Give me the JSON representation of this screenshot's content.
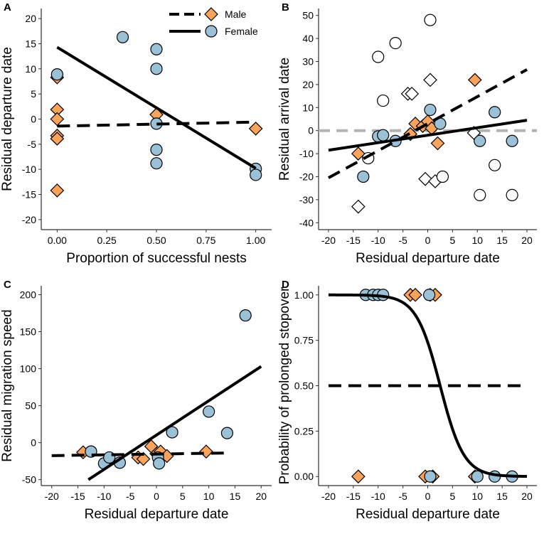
{
  "colors": {
    "male": "#F9A35B",
    "female": "#9BC1D7",
    "open": "#ffffff",
    "zero_line": "#b3b3b3",
    "line": "#000000"
  },
  "legend": {
    "male_label": "Male",
    "female_label": "Female"
  },
  "chart_data": [
    {
      "panel": "A",
      "type": "scatter",
      "xlabel": "Proportion of successful nests",
      "ylabel": "Residual departure date",
      "xlim": [
        -0.08,
        1.08
      ],
      "ylim": [
        -22,
        22
      ],
      "xticks": [
        0,
        0.25,
        0.5,
        0.75,
        1
      ],
      "xtick_labels": [
        "0.00",
        "0.25",
        "0.50",
        "0.75",
        "1.00"
      ],
      "yticks": [
        -20,
        -15,
        -10,
        -5,
        0,
        5,
        10,
        15,
        20
      ],
      "ytick_labels": [
        "-20",
        "-15",
        "-10",
        "-5",
        "0",
        "5",
        "10",
        "15",
        "20"
      ],
      "series": [
        {
          "name": "Male",
          "marker": "diamond",
          "fill": "male",
          "points": [
            [
              0,
              8.3
            ],
            [
              0,
              1.9
            ],
            [
              0,
              0
            ],
            [
              0,
              -3.3
            ],
            [
              0,
              -3.9
            ],
            [
              0,
              -14.2
            ],
            [
              0.5,
              0.9
            ],
            [
              1,
              -1.9
            ]
          ]
        },
        {
          "name": "Female",
          "marker": "circle",
          "fill": "female",
          "points": [
            [
              0,
              8.9
            ],
            [
              0.33,
              16.3
            ],
            [
              0.5,
              13.9
            ],
            [
              0.5,
              10.0
            ],
            [
              0.5,
              -0.9
            ],
            [
              0.5,
              -6.1
            ],
            [
              0.5,
              -8.8
            ],
            [
              1,
              -9.9
            ],
            [
              1,
              -11.1
            ]
          ]
        }
      ],
      "lines": [
        {
          "name": "Male",
          "style": "dashed",
          "x": [
            0,
            1
          ],
          "y": [
            -1.4,
            -0.6
          ]
        },
        {
          "name": "Female",
          "style": "solid",
          "x": [
            0,
            1
          ],
          "y": [
            14.3,
            -9.8
          ]
        }
      ],
      "legend_position": "top-right"
    },
    {
      "panel": "B",
      "type": "scatter",
      "xlabel": "Residual departure date",
      "ylabel": "Residual arrival date",
      "xlim": [
        -22,
        22
      ],
      "ylim": [
        -43,
        53
      ],
      "xticks": [
        -20,
        -15,
        -10,
        -5,
        0,
        5,
        10,
        15,
        20
      ],
      "xtick_labels": [
        "-20",
        "-15",
        "-10",
        "-5",
        "0",
        "5",
        "10",
        "15",
        "20"
      ],
      "yticks": [
        -40,
        -30,
        -20,
        -10,
        0,
        10,
        20,
        30,
        40,
        50
      ],
      "ytick_labels": [
        "-40",
        "-30",
        "-20",
        "-10",
        "0",
        "10",
        "20",
        "30",
        "40",
        "50"
      ],
      "hline": {
        "y": 0,
        "style": "dashed",
        "color": "zero_line"
      },
      "series": [
        {
          "name": "Male",
          "marker": "diamond",
          "fill": "male",
          "points": [
            [
              -14,
              -10
            ],
            [
              -3.5,
              -1.5
            ],
            [
              -2.5,
              3
            ],
            [
              -1,
              2
            ],
            [
              0,
              4
            ],
            [
              0.8,
              1
            ],
            [
              2,
              -5.5
            ],
            [
              9.5,
              22
            ]
          ]
        },
        {
          "name": "Female",
          "marker": "circle",
          "fill": "female",
          "points": [
            [
              -13,
              -20
            ],
            [
              -10,
              -2.5
            ],
            [
              -9,
              -2
            ],
            [
              -6.5,
              -4.5
            ],
            [
              0.5,
              9
            ],
            [
              2.5,
              3
            ],
            [
              10.5,
              -4.5
            ],
            [
              13.5,
              8
            ],
            [
              17,
              -4.5
            ]
          ]
        },
        {
          "name": "Male (open)",
          "marker": "diamond",
          "fill": "open",
          "points": [
            [
              -14,
              -33
            ],
            [
              -4,
              16
            ],
            [
              -3.2,
              16
            ],
            [
              -0.5,
              -21
            ],
            [
              0.5,
              22
            ],
            [
              1.5,
              -22
            ],
            [
              9.3,
              -1
            ]
          ]
        },
        {
          "name": "Female (open)",
          "marker": "circle",
          "fill": "open",
          "points": [
            [
              -12,
              -12
            ],
            [
              -10,
              32
            ],
            [
              -9,
              13
            ],
            [
              -6.5,
              38
            ],
            [
              0.5,
              48
            ],
            [
              3,
              -20
            ],
            [
              10.5,
              -28
            ],
            [
              13.5,
              -15
            ],
            [
              17,
              -28
            ]
          ]
        }
      ],
      "lines": [
        {
          "name": "Male",
          "style": "dashed",
          "x": [
            -20,
            20
          ],
          "y": [
            -20.5,
            26.5
          ]
        },
        {
          "name": "Female",
          "style": "solid",
          "x": [
            -20,
            20
          ],
          "y": [
            -8.5,
            4.5
          ]
        }
      ]
    },
    {
      "panel": "C",
      "type": "scatter",
      "xlabel": "Residual departure date",
      "ylabel": "Residual migration speed",
      "xlim": [
        -22,
        22
      ],
      "ylim": [
        -58,
        212
      ],
      "xticks": [
        -20,
        -15,
        -10,
        -5,
        0,
        5,
        10,
        15,
        20
      ],
      "xtick_labels": [
        "-20",
        "-15",
        "-10",
        "-5",
        "0",
        "5",
        "10",
        "15",
        "20"
      ],
      "yticks": [
        -50,
        0,
        50,
        100,
        150,
        200
      ],
      "ytick_labels": [
        "-50",
        "0",
        "50",
        "100",
        "150",
        "200"
      ],
      "series": [
        {
          "name": "Male",
          "marker": "diamond",
          "fill": "male",
          "points": [
            [
              -14,
              -13
            ],
            [
              -3.5,
              -20
            ],
            [
              -2.5,
              -22
            ],
            [
              -1,
              -5
            ],
            [
              0,
              -15
            ],
            [
              0.8,
              -12
            ],
            [
              2,
              -18
            ],
            [
              9.5,
              -12
            ]
          ]
        },
        {
          "name": "Female",
          "marker": "circle",
          "fill": "female",
          "points": [
            [
              -12.5,
              -12
            ],
            [
              -10,
              -28
            ],
            [
              -9,
              -20
            ],
            [
              -7,
              -27
            ],
            [
              0.3,
              -20
            ],
            [
              0.5,
              -28
            ],
            [
              3,
              14
            ],
            [
              10,
              42
            ],
            [
              13.5,
              13
            ],
            [
              17,
              172
            ]
          ]
        }
      ],
      "lines": [
        {
          "name": "Male",
          "style": "dashed",
          "x": [
            -20,
            13
          ],
          "y": [
            -17.5,
            -14
          ]
        },
        {
          "name": "Female",
          "style": "solid",
          "x": [
            -13,
            20
          ],
          "y": [
            -50,
            103
          ]
        }
      ]
    },
    {
      "panel": "D",
      "type": "scatter",
      "xlabel": "Residual departure date",
      "ylabel": "Probability of prolonged stopover",
      "xlim": [
        -22,
        22
      ],
      "ylim": [
        -0.05,
        1.05
      ],
      "xticks": [
        -20,
        -15,
        -10,
        -5,
        0,
        5,
        10,
        15,
        20
      ],
      "xtick_labels": [
        "-20",
        "-15",
        "-10",
        "-5",
        "0",
        "5",
        "10",
        "15",
        "20"
      ],
      "yticks": [
        0,
        0.25,
        0.5,
        0.75,
        1
      ],
      "ytick_labels": [
        "0.00",
        "0.25",
        "0.50",
        "0.75",
        "1.00"
      ],
      "series": [
        {
          "name": "Male",
          "marker": "diamond",
          "fill": "male",
          "points": [
            [
              -3.5,
              1
            ],
            [
              -2.5,
              1
            ],
            [
              0.5,
              1
            ],
            [
              1.5,
              1
            ],
            [
              -14,
              0
            ],
            [
              -0.5,
              0
            ],
            [
              1,
              0
            ],
            [
              9.5,
              0
            ]
          ]
        },
        {
          "name": "Female",
          "marker": "circle",
          "fill": "female",
          "points": [
            [
              -12.5,
              1
            ],
            [
              -11,
              1
            ],
            [
              -10,
              1
            ],
            [
              -9,
              1
            ],
            [
              0.3,
              1
            ],
            [
              0.5,
              0
            ],
            [
              10,
              0
            ],
            [
              13.5,
              0
            ],
            [
              17,
              0
            ]
          ]
        }
      ],
      "logistic": {
        "name": "Female",
        "style": "solid",
        "midpoint": 2.5,
        "scale": 2.4,
        "x": [
          -20,
          20
        ]
      },
      "lines": [
        {
          "name": "Male",
          "style": "dashed",
          "x": [
            -20,
            20
          ],
          "y": [
            0.5,
            0.5
          ]
        }
      ]
    }
  ]
}
